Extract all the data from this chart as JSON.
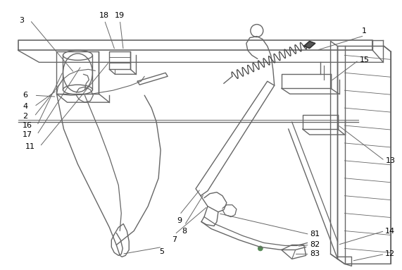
{
  "background_color": "#ffffff",
  "line_color": "#666666",
  "label_color": "#000000",
  "fig_width": 5.71,
  "fig_height": 3.83,
  "dpi": 100
}
